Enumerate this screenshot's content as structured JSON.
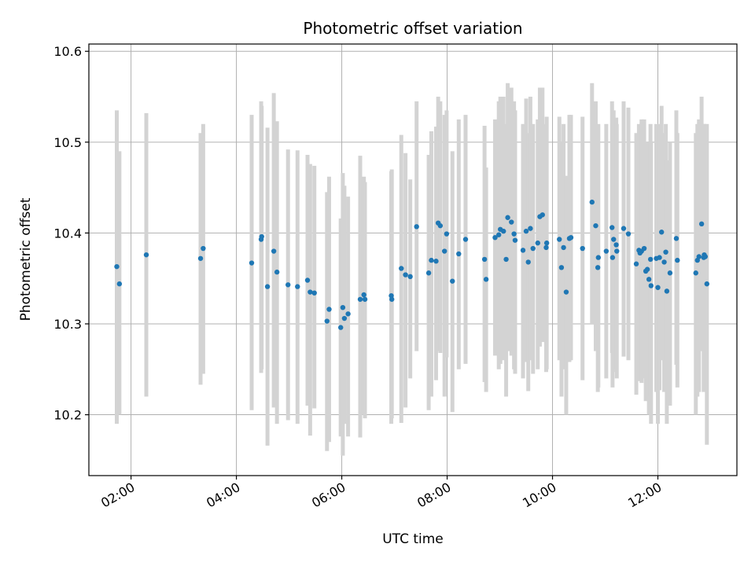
{
  "chart_data": {
    "type": "scatter",
    "title": "Photometric offset variation",
    "xlabel": "UTC time",
    "ylabel": "Photometric offset",
    "x_unit": "hours UTC",
    "xlim": [
      1.2,
      13.5
    ],
    "ylim": [
      10.133,
      10.608
    ],
    "grid": true,
    "xticks": [
      {
        "value": 2,
        "label": "02:00"
      },
      {
        "value": 4,
        "label": "04:00"
      },
      {
        "value": 6,
        "label": "06:00"
      },
      {
        "value": 8,
        "label": "08:00"
      },
      {
        "value": 10,
        "label": "10:00"
      },
      {
        "value": 12,
        "label": "12:00"
      }
    ],
    "yticks": [
      {
        "value": 10.2,
        "label": "10.2"
      },
      {
        "value": 10.3,
        "label": "10.3"
      },
      {
        "value": 10.4,
        "label": "10.4"
      },
      {
        "value": 10.5,
        "label": "10.5"
      },
      {
        "value": 10.6,
        "label": "10.6"
      }
    ],
    "colors": {
      "points": "#1f77b4",
      "errorbars": "#d3d3d3",
      "grid": "#b0b0b0"
    },
    "series": [
      {
        "points": [
          [
            1.73,
            10.363,
            10.535,
            10.19
          ],
          [
            1.78,
            10.344,
            10.49,
            10.2
          ],
          [
            2.29,
            10.376,
            10.532,
            10.22
          ],
          [
            3.32,
            10.372,
            10.51,
            10.233
          ],
          [
            3.37,
            10.383,
            10.52,
            10.245
          ],
          [
            4.29,
            10.367,
            10.53,
            10.205
          ],
          [
            4.47,
            10.393,
            10.545,
            10.246
          ],
          [
            4.48,
            10.396,
            10.54,
            10.25
          ],
          [
            4.59,
            10.341,
            10.516,
            10.166
          ],
          [
            4.71,
            10.38,
            10.554,
            10.208
          ],
          [
            4.77,
            10.357,
            10.523,
            10.19
          ],
          [
            4.98,
            10.343,
            10.492,
            10.194
          ],
          [
            5.16,
            10.341,
            10.491,
            10.19
          ],
          [
            5.35,
            10.348,
            10.486,
            10.21
          ],
          [
            5.4,
            10.335,
            10.476,
            10.177
          ],
          [
            5.48,
            10.334,
            10.474,
            10.207
          ],
          [
            5.72,
            10.303,
            10.445,
            10.16
          ],
          [
            5.76,
            10.316,
            10.462,
            10.17
          ],
          [
            5.98,
            10.296,
            10.416,
            10.176
          ],
          [
            6.02,
            10.318,
            10.466,
            10.155
          ],
          [
            6.05,
            10.306,
            10.452,
            10.19
          ],
          [
            6.12,
            10.311,
            10.44,
            10.176
          ],
          [
            6.35,
            10.327,
            10.485,
            10.175
          ],
          [
            6.42,
            10.332,
            10.462,
            10.2
          ],
          [
            6.44,
            10.327,
            10.456,
            10.196
          ],
          [
            6.94,
            10.331,
            10.468,
            10.19
          ],
          [
            6.95,
            10.327,
            10.47,
            10.196
          ],
          [
            7.13,
            10.361,
            10.508,
            10.191
          ],
          [
            7.21,
            10.354,
            10.488,
            10.208
          ],
          [
            7.3,
            10.352,
            10.459,
            10.24
          ],
          [
            7.42,
            10.407,
            10.545,
            10.27
          ],
          [
            7.65,
            10.356,
            10.486,
            10.205
          ],
          [
            7.7,
            10.37,
            10.512,
            10.22
          ],
          [
            7.79,
            10.369,
            10.517,
            10.238
          ],
          [
            7.83,
            10.411,
            10.55,
            10.27
          ],
          [
            7.87,
            10.408,
            10.545,
            10.268
          ],
          [
            7.95,
            10.38,
            10.53,
            10.22
          ],
          [
            7.99,
            10.399,
            10.535,
            10.263
          ],
          [
            8.1,
            10.347,
            10.49,
            10.203
          ],
          [
            8.22,
            10.377,
            10.525,
            10.25
          ],
          [
            8.35,
            10.393,
            10.53,
            10.256
          ],
          [
            8.71,
            10.371,
            10.518,
            10.236
          ],
          [
            8.74,
            10.349,
            10.472,
            10.225
          ],
          [
            8.91,
            10.395,
            10.525,
            10.265
          ],
          [
            8.98,
            10.398,
            10.545,
            10.25
          ],
          [
            9.01,
            10.404,
            10.55,
            10.256
          ],
          [
            9.07,
            10.402,
            10.55,
            10.26
          ],
          [
            9.12,
            10.371,
            10.52,
            10.22
          ],
          [
            9.15,
            10.417,
            10.565,
            10.27
          ],
          [
            9.22,
            10.412,
            10.56,
            10.265
          ],
          [
            9.27,
            10.399,
            10.545,
            10.25
          ],
          [
            9.29,
            10.392,
            10.535,
            10.245
          ],
          [
            9.44,
            10.381,
            10.52,
            10.24
          ],
          [
            9.5,
            10.402,
            10.548,
            10.258
          ],
          [
            9.54,
            10.368,
            10.51,
            10.226
          ],
          [
            9.58,
            10.405,
            10.55,
            10.26
          ],
          [
            9.63,
            10.383,
            10.52,
            10.245
          ],
          [
            9.72,
            10.389,
            10.525,
            10.25
          ],
          [
            9.76,
            10.418,
            10.56,
            10.275
          ],
          [
            9.81,
            10.42,
            10.56,
            10.28
          ],
          [
            9.88,
            10.384,
            10.52,
            10.247
          ],
          [
            9.89,
            10.389,
            10.528,
            10.25
          ],
          [
            10.13,
            10.393,
            10.528,
            10.26
          ],
          [
            10.17,
            10.362,
            10.5,
            10.22
          ],
          [
            10.21,
            10.384,
            10.52,
            10.25
          ],
          [
            10.26,
            10.335,
            10.463,
            10.2
          ],
          [
            10.32,
            10.394,
            10.53,
            10.258
          ],
          [
            10.35,
            10.395,
            10.53,
            10.26
          ],
          [
            10.57,
            10.383,
            10.528,
            10.238
          ],
          [
            10.75,
            10.434,
            10.565,
            10.3
          ],
          [
            10.82,
            10.408,
            10.545,
            10.27
          ],
          [
            10.86,
            10.362,
            10.5,
            10.225
          ],
          [
            10.87,
            10.373,
            10.52,
            10.23
          ],
          [
            11.02,
            10.38,
            10.52,
            10.24
          ],
          [
            11.13,
            10.406,
            10.545,
            10.268
          ],
          [
            11.14,
            10.373,
            10.515,
            10.23
          ],
          [
            11.16,
            10.393,
            10.535,
            10.25
          ],
          [
            11.21,
            10.387,
            10.527,
            10.247
          ],
          [
            11.22,
            10.38,
            10.52,
            10.24
          ],
          [
            11.35,
            10.405,
            10.545,
            10.264
          ],
          [
            11.44,
            10.399,
            10.538,
            10.26
          ],
          [
            11.59,
            10.366,
            10.51,
            10.222
          ],
          [
            11.64,
            10.381,
            10.52,
            10.242
          ],
          [
            11.66,
            10.378,
            10.51,
            10.237
          ],
          [
            11.69,
            10.38,
            10.525,
            10.235
          ],
          [
            11.74,
            10.383,
            10.525,
            10.24
          ],
          [
            11.77,
            10.358,
            10.5,
            10.215
          ],
          [
            11.8,
            10.36,
            10.5,
            10.22
          ],
          [
            11.83,
            10.349,
            10.49,
            10.2
          ],
          [
            11.86,
            10.371,
            10.52,
            10.22
          ],
          [
            11.87,
            10.342,
            10.5,
            10.19
          ],
          [
            11.97,
            10.372,
            10.52,
            10.225
          ],
          [
            12.0,
            10.34,
            10.49,
            10.19
          ],
          [
            12.03,
            10.373,
            10.52,
            10.227
          ],
          [
            12.07,
            10.401,
            10.54,
            10.26
          ],
          [
            12.12,
            10.368,
            10.51,
            10.225
          ],
          [
            12.15,
            10.379,
            10.52,
            10.238
          ],
          [
            12.17,
            10.336,
            10.48,
            10.19
          ],
          [
            12.23,
            10.356,
            10.5,
            10.21
          ],
          [
            12.35,
            10.394,
            10.535,
            10.255
          ],
          [
            12.37,
            10.37,
            10.51,
            10.23
          ],
          [
            12.72,
            10.356,
            10.51,
            10.2
          ],
          [
            12.75,
            10.37,
            10.52,
            10.22
          ],
          [
            12.78,
            10.374,
            10.525,
            10.225
          ],
          [
            12.83,
            10.41,
            10.55,
            10.27
          ],
          [
            12.87,
            10.373,
            10.52,
            10.225
          ],
          [
            12.88,
            10.376,
            10.52,
            10.232
          ],
          [
            12.9,
            10.374,
            10.518,
            10.23
          ],
          [
            12.93,
            10.344,
            10.52,
            10.167
          ]
        ]
      }
    ]
  }
}
